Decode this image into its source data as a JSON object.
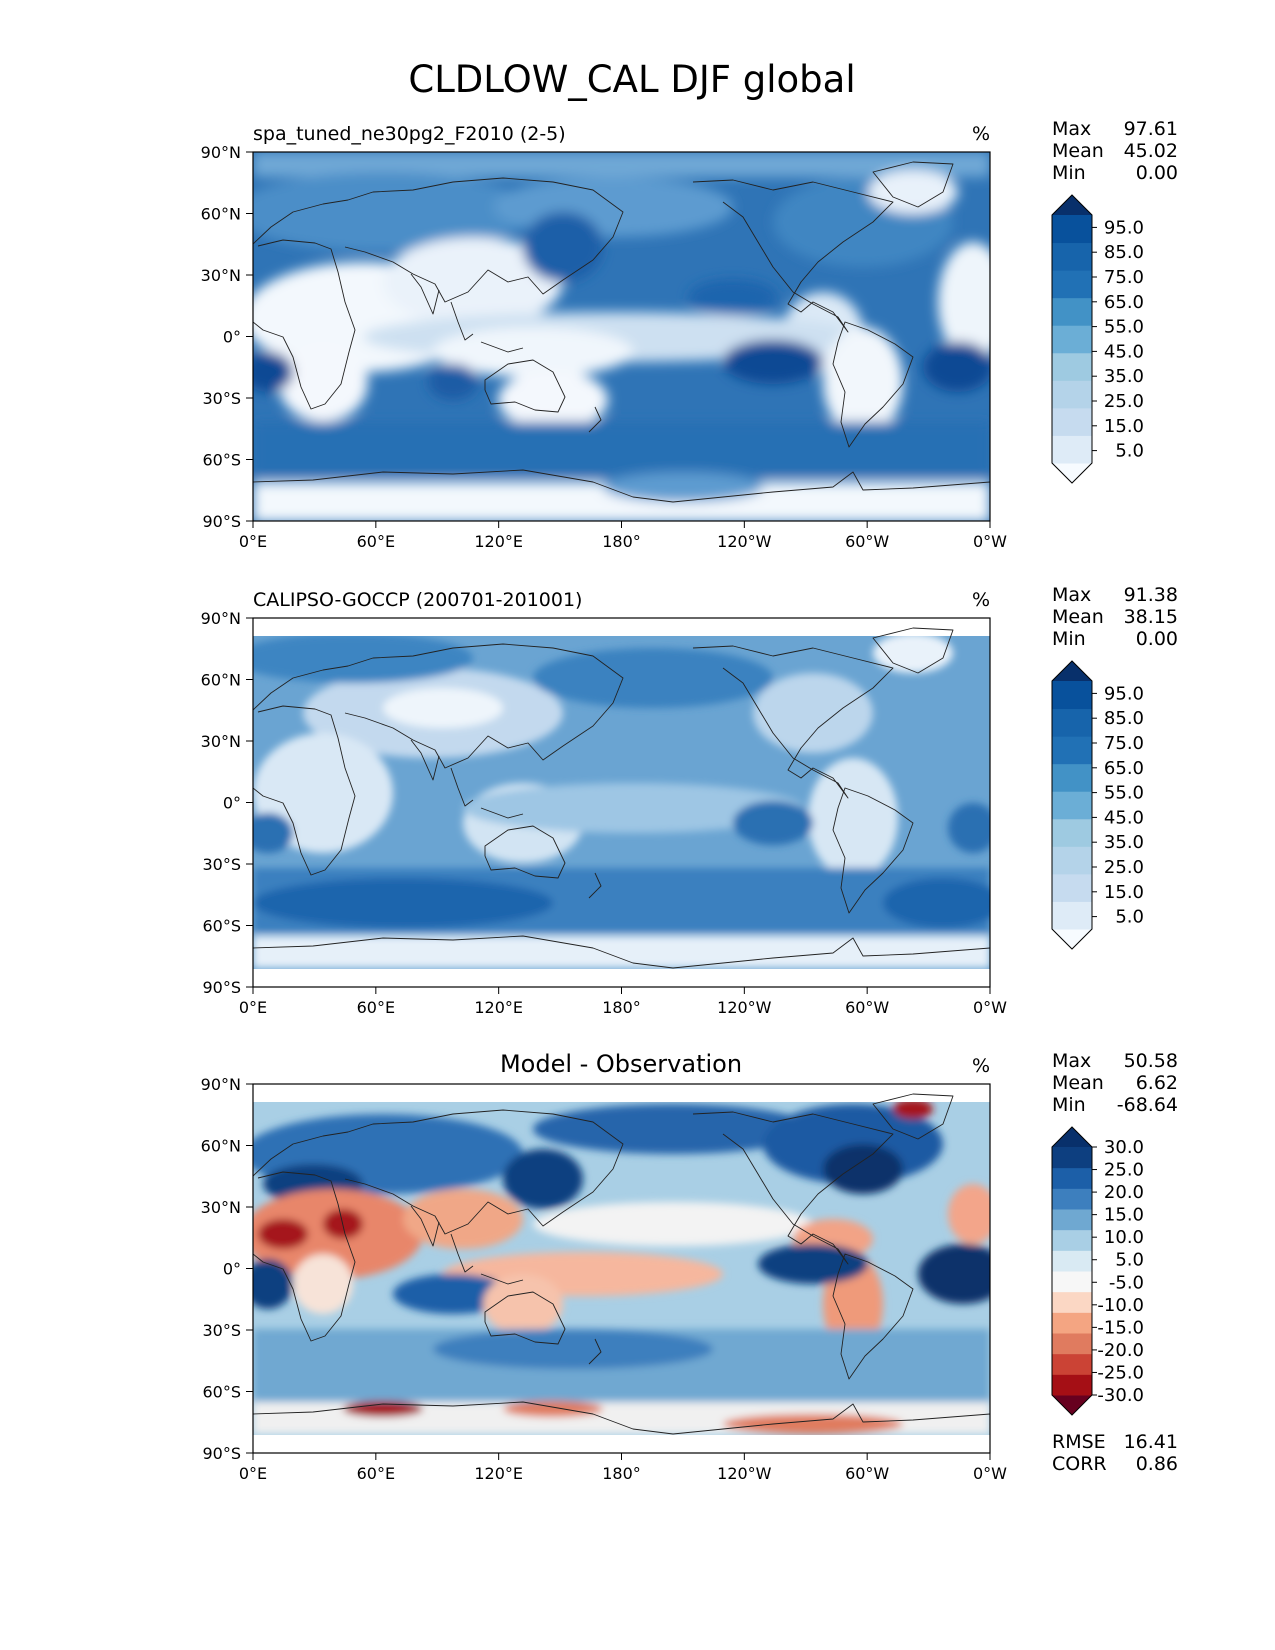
{
  "title": "CLDLOW_CAL DJF global",
  "colors": {
    "blues": [
      "#f7fbff",
      "#deebf7",
      "#c6dbef",
      "#b4d3e9",
      "#9ecae1",
      "#6baed6",
      "#4292c6",
      "#2171b5",
      "#1764ab",
      "#08519c",
      "#08306b"
    ],
    "rdbu": [
      "#67001f",
      "#a50f15",
      "#cb4335",
      "#e07b5f",
      "#f4a582",
      "#fbd7c4",
      "#f7f7f7",
      "#d9eaf3",
      "#a9cfe5",
      "#6fa8d1",
      "#3d7fbe",
      "#1c5fa8",
      "#0d3f80",
      "#08306b"
    ],
    "land_mask": "#eef4fb"
  },
  "chart_data": [
    {
      "type": "heatmap",
      "title": "spa_tuned_ne30pg2_F2010 (2-5)",
      "units": "%",
      "stats": {
        "max_label": "Max",
        "max": "97.61",
        "mean_label": "Mean",
        "mean": "45.02",
        "min_label": "Min",
        "min": "0.00"
      },
      "colorbar_levels": [
        "5.0",
        "15.0",
        "25.0",
        "35.0",
        "45.0",
        "55.0",
        "65.0",
        "75.0",
        "85.0",
        "95.0"
      ],
      "x_ticks": [
        "0°E",
        "60°E",
        "120°E",
        "180°",
        "120°W",
        "60°W",
        "0°W"
      ],
      "y_ticks": [
        "90°N",
        "60°N",
        "30°N",
        "0°",
        "30°S",
        "60°S",
        "90°S"
      ],
      "xlim": [
        0,
        360
      ],
      "ylim": [
        -90,
        90
      ]
    },
    {
      "type": "heatmap",
      "title": "CALIPSO-GOCCP (200701-201001)",
      "units": "%",
      "stats": {
        "max_label": "Max",
        "max": "91.38",
        "mean_label": "Mean",
        "mean": "38.15",
        "min_label": "Min",
        "min": "0.00"
      },
      "colorbar_levels": [
        "5.0",
        "15.0",
        "25.0",
        "35.0",
        "45.0",
        "55.0",
        "65.0",
        "75.0",
        "85.0",
        "95.0"
      ],
      "x_ticks": [
        "0°E",
        "60°E",
        "120°E",
        "180°",
        "120°W",
        "60°W",
        "0°W"
      ],
      "y_ticks": [
        "90°N",
        "60°N",
        "30°N",
        "0°",
        "30°S",
        "60°S",
        "90°S"
      ],
      "xlim": [
        0,
        360
      ],
      "ylim": [
        -90,
        90
      ]
    },
    {
      "type": "heatmap",
      "title": "Model - Observation",
      "units": "%",
      "stats": {
        "max_label": "Max",
        "max": "50.58",
        "mean_label": "Mean",
        "mean": "6.62",
        "min_label": "Min",
        "min": "-68.64"
      },
      "colorbar_levels": [
        "-30.0",
        "-25.0",
        "-20.0",
        "-15.0",
        "-10.0",
        "-5.0",
        "5.0",
        "10.0",
        "15.0",
        "20.0",
        "25.0",
        "30.0"
      ],
      "x_ticks": [
        "0°E",
        "60°E",
        "120°E",
        "180°",
        "120°W",
        "60°W",
        "0°W"
      ],
      "y_ticks": [
        "90°N",
        "60°N",
        "30°N",
        "0°",
        "30°S",
        "60°S",
        "90°S"
      ],
      "xlim": [
        0,
        360
      ],
      "ylim": [
        -90,
        90
      ],
      "rmse_label": "RMSE",
      "rmse": "16.41",
      "corr_label": "CORR",
      "corr": "0.86"
    }
  ]
}
